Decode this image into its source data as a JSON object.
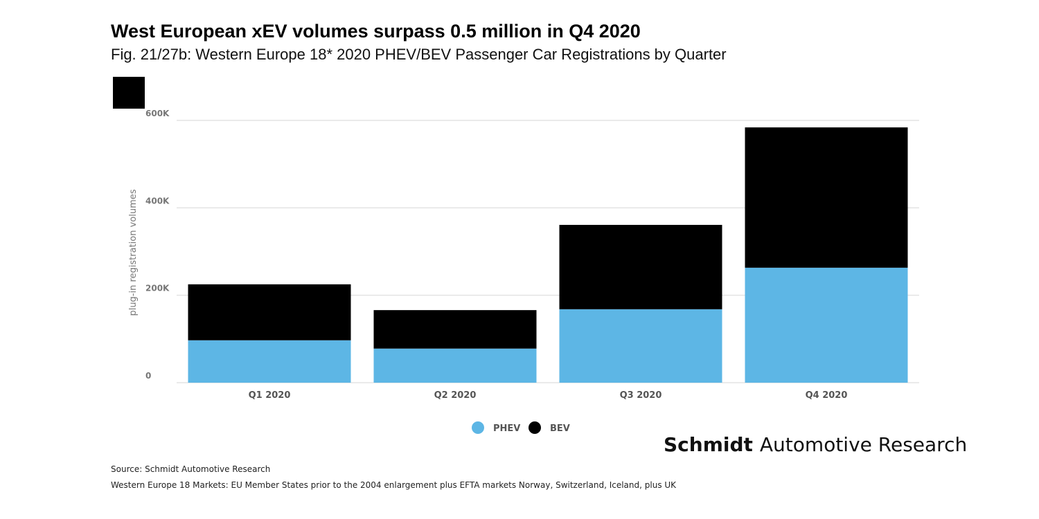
{
  "header": {
    "title": "West European xEV volumes surpass 0.5 million in Q4 2020",
    "subtitle": "Fig. 21/27b: Western Europe 18* 2020 PHEV/BEV Passenger Car Registrations by Quarter"
  },
  "brand": {
    "bold": "Schmidt",
    "rest": "Automotive Research"
  },
  "footer": {
    "source": "Source: Schmidt Automotive Research",
    "note": "Western Europe 18 Markets: EU Member States prior to the 2004 enlargement plus EFTA markets Norway, Switzerland, Iceland, plus UK"
  },
  "chart_data": {
    "type": "bar",
    "stacked": true,
    "categories": [
      "Q1 2020",
      "Q2 2020",
      "Q3 2020",
      "Q4 2020"
    ],
    "series": [
      {
        "name": "PHEV",
        "color": "#5db6e5",
        "values": [
          97000,
          78000,
          168000,
          263000
        ]
      },
      {
        "name": "BEV",
        "color": "#000000",
        "values": [
          128000,
          88000,
          193000,
          321000
        ]
      }
    ],
    "ylabel": "plug-in registration volumes",
    "ylim": [
      0,
      600000
    ],
    "yticks": [
      {
        "v": 0,
        "label": "0"
      },
      {
        "v": 200000,
        "label": "200K"
      },
      {
        "v": 400000,
        "label": "400K"
      },
      {
        "v": 600000,
        "label": "600K"
      }
    ],
    "grid": true,
    "legend": "bottom-center"
  }
}
